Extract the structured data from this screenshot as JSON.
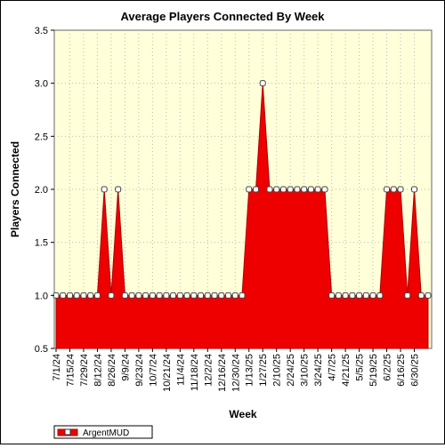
{
  "chart_data": {
    "type": "area",
    "title": "Average Players Connected By Week",
    "xlabel": "Week",
    "ylabel": "Players Connected",
    "ylim": [
      0.5,
      3.5
    ],
    "yticks": [
      "0.5",
      "1.0",
      "1.5",
      "2.0",
      "2.5",
      "3.0",
      "3.5"
    ],
    "x_tick_labels": [
      "7/1/24",
      "7/15/24",
      "7/29/24",
      "8/12/24",
      "8/26/24",
      "9/9/24",
      "9/23/24",
      "10/7/24",
      "10/21/24",
      "11/4/24",
      "11/18/24",
      "12/2/24",
      "12/16/24",
      "12/30/24",
      "1/13/25",
      "1/27/25",
      "2/10/25",
      "2/24/25",
      "3/10/25",
      "3/24/25",
      "4/7/25",
      "4/21/25",
      "5/5/25",
      "5/19/25",
      "6/2/25",
      "6/16/25",
      "6/30/25"
    ],
    "grid": true,
    "legend_position": "bottom-left",
    "series": [
      {
        "name": "ArgentMUD",
        "color": "#ee0000",
        "values": [
          1,
          1,
          1,
          1,
          1,
          1,
          1,
          2,
          1,
          2,
          1,
          1,
          1,
          1,
          1,
          1,
          1,
          1,
          1,
          1,
          1,
          1,
          1,
          1,
          1,
          1,
          1,
          1,
          2,
          2,
          3,
          2,
          2,
          2,
          2,
          2,
          2,
          2,
          2,
          2,
          1,
          1,
          1,
          1,
          1,
          1,
          1,
          1,
          2,
          2,
          2,
          1,
          2,
          1,
          1
        ]
      }
    ]
  }
}
